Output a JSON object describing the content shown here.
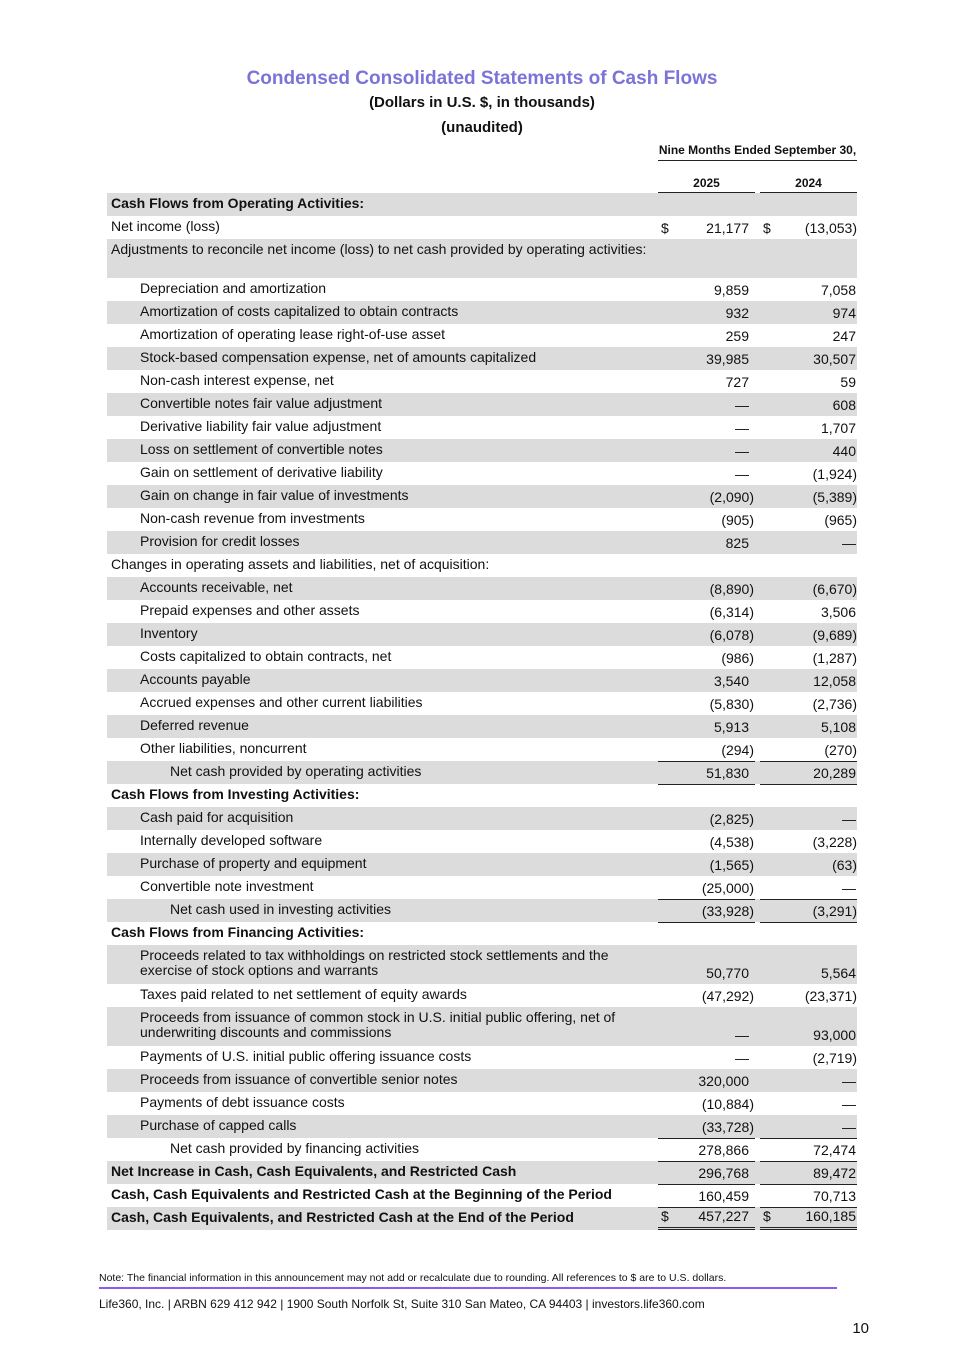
{
  "title": "Condensed Consolidated Statements of Cash Flows",
  "subtitle": "(Dollars in U.S. $, in thousands)",
  "subtitle2": "(unaudited)",
  "column_header": "Nine Months Ended September 30,",
  "years": [
    "2025",
    "2024"
  ],
  "accent_color": "#7b73d8",
  "rows": [
    {
      "label": "Cash Flows from Operating Activities:",
      "bold": true,
      "indent": 0,
      "values": [
        "",
        ""
      ]
    },
    {
      "label": "Net income (loss)",
      "indent": 0,
      "values": [
        "21,177",
        "(13,053)"
      ],
      "dollar": true
    },
    {
      "label": "Adjustments to reconcile net income (loss) to net cash provided by operating activities:",
      "indent": 0,
      "tall": true,
      "values": [
        "",
        ""
      ]
    },
    {
      "label": "Depreciation and amortization",
      "indent": 1,
      "values": [
        "9,859",
        "7,058"
      ]
    },
    {
      "label": "Amortization of costs capitalized to obtain contracts",
      "indent": 1,
      "values": [
        "932",
        "974"
      ]
    },
    {
      "label": "Amortization of operating lease right-of-use asset",
      "indent": 1,
      "values": [
        "259",
        "247"
      ]
    },
    {
      "label": "Stock-based compensation expense, net of amounts capitalized",
      "indent": 1,
      "values": [
        "39,985",
        "30,507"
      ]
    },
    {
      "label": "Non-cash interest expense, net",
      "indent": 1,
      "values": [
        "727",
        "59"
      ]
    },
    {
      "label": "Convertible notes fair value adjustment",
      "indent": 1,
      "values": [
        "—",
        "608"
      ]
    },
    {
      "label": "Derivative liability fair value adjustment",
      "indent": 1,
      "values": [
        "—",
        "1,707"
      ]
    },
    {
      "label": "Loss on settlement of convertible notes",
      "indent": 1,
      "values": [
        "—",
        "440"
      ]
    },
    {
      "label": "Gain on settlement of derivative liability",
      "indent": 1,
      "values": [
        "—",
        "(1,924)"
      ]
    },
    {
      "label": "Gain on change in fair value of investments",
      "indent": 1,
      "values": [
        "(2,090)",
        "(5,389)"
      ]
    },
    {
      "label": "Non-cash revenue from investments",
      "indent": 1,
      "values": [
        "(905)",
        "(965)"
      ]
    },
    {
      "label": "Provision for credit losses",
      "indent": 1,
      "values": [
        "825",
        "—"
      ]
    },
    {
      "label": "Changes in operating assets and liabilities, net of acquisition:",
      "indent": 0,
      "values": [
        "",
        ""
      ]
    },
    {
      "label": "Accounts receivable, net",
      "indent": 1,
      "values": [
        "(8,890)",
        "(6,670)"
      ]
    },
    {
      "label": "Prepaid expenses and other assets",
      "indent": 1,
      "values": [
        "(6,314)",
        "3,506"
      ]
    },
    {
      "label": "Inventory",
      "indent": 1,
      "values": [
        "(6,078)",
        "(9,689)"
      ]
    },
    {
      "label": "Costs capitalized to obtain contracts, net",
      "indent": 1,
      "values": [
        "(986)",
        "(1,287)"
      ]
    },
    {
      "label": "Accounts payable",
      "indent": 1,
      "values": [
        "3,540",
        "12,058"
      ]
    },
    {
      "label": "Accrued expenses and other current liabilities",
      "indent": 1,
      "values": [
        "(5,830)",
        "(2,736)"
      ]
    },
    {
      "label": "Deferred revenue",
      "indent": 1,
      "values": [
        "5,913",
        "5,108"
      ]
    },
    {
      "label": "Other liabilities, noncurrent",
      "indent": 1,
      "values": [
        "(294)",
        "(270)"
      ]
    },
    {
      "label": "Net cash provided by operating activities",
      "indent": 2,
      "total": true,
      "values": [
        "51,830",
        "20,289"
      ]
    },
    {
      "label": "Cash Flows from Investing Activities:",
      "bold": true,
      "indent": 0,
      "total": true,
      "values": [
        "",
        ""
      ]
    },
    {
      "label": "Cash paid for acquisition",
      "indent": 1,
      "values": [
        "(2,825)",
        "—"
      ]
    },
    {
      "label": "Internally developed software",
      "indent": 1,
      "values": [
        "(4,538)",
        "(3,228)"
      ]
    },
    {
      "label": "Purchase of property and equipment",
      "indent": 1,
      "values": [
        "(1,565)",
        "(63)"
      ]
    },
    {
      "label": "Convertible note investment",
      "indent": 1,
      "values": [
        "(25,000)",
        "—"
      ]
    },
    {
      "label": "Net cash used in investing activities",
      "indent": 2,
      "total": true,
      "values": [
        "(33,928)",
        "(3,291)"
      ]
    },
    {
      "label": "Cash Flows from Financing Activities:",
      "bold": true,
      "indent": 0,
      "total": true,
      "values": [
        "",
        ""
      ]
    },
    {
      "label": "Proceeds related to tax withholdings on restricted stock settlements and the exercise of stock options and warrants",
      "indent": 1,
      "tall": true,
      "values": [
        "50,770",
        "5,564"
      ]
    },
    {
      "label": "Taxes paid related to net settlement of equity awards",
      "indent": 1,
      "values": [
        "(47,292)",
        "(23,371)"
      ]
    },
    {
      "label": "Proceeds from issuance of common stock in U.S. initial public offering, net of underwriting discounts and commissions",
      "indent": 1,
      "tall": true,
      "values": [
        "—",
        "93,000"
      ]
    },
    {
      "label": "Payments of U.S. initial public offering issuance costs",
      "indent": 1,
      "values": [
        "—",
        "(2,719)"
      ]
    },
    {
      "label": "Proceeds from issuance of convertible senior notes",
      "indent": 1,
      "values": [
        "320,000",
        "—"
      ]
    },
    {
      "label": "Payments of debt issuance costs",
      "indent": 1,
      "values": [
        "(10,884)",
        "—"
      ]
    },
    {
      "label": "Purchase of capped calls",
      "indent": 1,
      "values": [
        "(33,728)",
        "—"
      ]
    },
    {
      "label": "Net cash provided by financing activities",
      "indent": 2,
      "total": true,
      "values": [
        "278,866",
        "72,474"
      ]
    },
    {
      "label": "Net Increase in Cash, Cash Equivalents, and Restricted Cash",
      "bold": true,
      "indent": 0,
      "total": true,
      "values": [
        "296,768",
        "89,472"
      ]
    },
    {
      "label": "Cash, Cash Equivalents and Restricted Cash at the Beginning of the Period",
      "bold": true,
      "indent": 0,
      "total": true,
      "values": [
        "160,459",
        "70,713"
      ]
    },
    {
      "label": "Cash, Cash Equivalents, and Restricted Cash at the End of the Period",
      "bold": true,
      "indent": 0,
      "total": true,
      "final": true,
      "dollar": true,
      "values": [
        "457,227",
        "160,185"
      ]
    }
  ],
  "dollar_sign": "$",
  "note": "Note: The financial information in this announcement may not add or recalculate due to rounding. All references to $ are to U.S. dollars.",
  "footer": "Life360, Inc.  |  ARBN 629 412 942  |  1900 South Norfolk St, Suite 310 San Mateo, CA 94403  |  investors.life360.com",
  "page_number": "10"
}
